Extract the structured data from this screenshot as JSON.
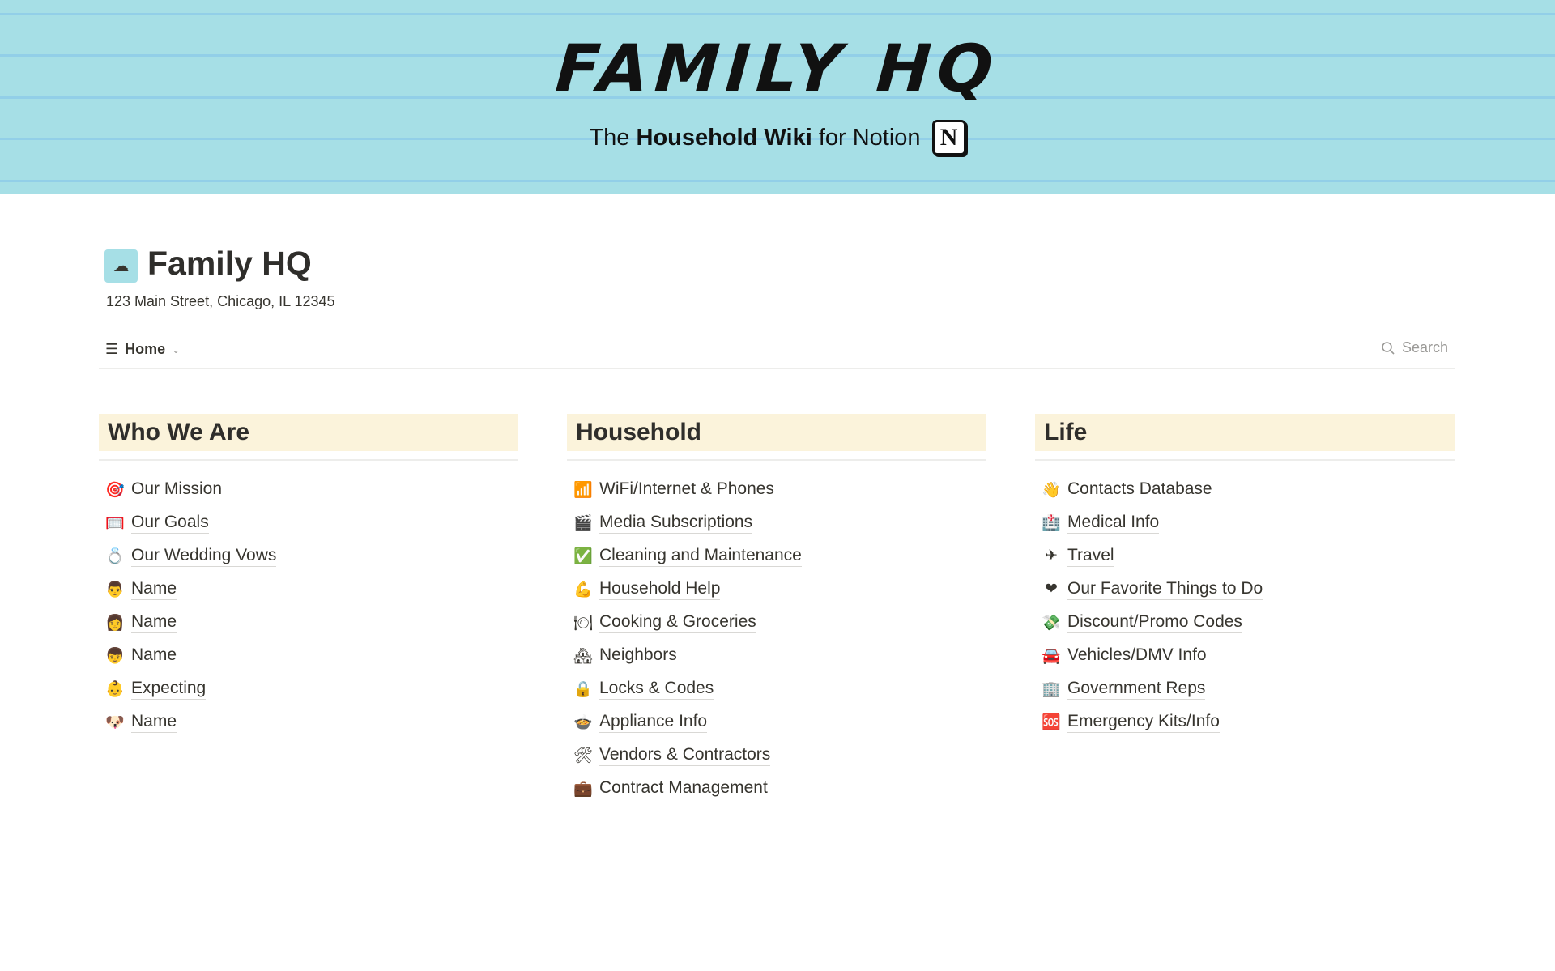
{
  "banner": {
    "title": "FAMILY HQ",
    "subtitle_pre": "The",
    "subtitle_bold": "Household Wiki",
    "subtitle_post": "for Notion",
    "logo_letter": "N",
    "background_color": "#a6dfe6",
    "line_color": "#92cfe8"
  },
  "page": {
    "icon": "cloud-icon",
    "icon_glyph": "☁",
    "title": "Family HQ",
    "address": "123 Main Street, Chicago, IL 12345"
  },
  "viewbar": {
    "view_label": "Home",
    "search_label": "Search"
  },
  "columns": [
    {
      "title": "Who We Are",
      "items": [
        {
          "icon": "🎯",
          "label": "Our Mission"
        },
        {
          "icon": "🥅",
          "label": "Our Goals"
        },
        {
          "icon": "💍",
          "label": "Our Wedding Vows"
        },
        {
          "icon": "👨",
          "label": "Name"
        },
        {
          "icon": "👩",
          "label": "Name"
        },
        {
          "icon": "👦",
          "label": "Name"
        },
        {
          "icon": "👶",
          "label": "Expecting"
        },
        {
          "icon": "🐶",
          "label": "Name"
        }
      ]
    },
    {
      "title": "Household",
      "items": [
        {
          "icon": "📶",
          "label": "WiFi/Internet & Phones"
        },
        {
          "icon": "🎬",
          "label": "Media Subscriptions"
        },
        {
          "icon": "✅",
          "label": "Cleaning and Maintenance"
        },
        {
          "icon": "💪",
          "label": "Household Help"
        },
        {
          "icon": "🍽",
          "label": "Cooking & Groceries"
        },
        {
          "icon": "🏘",
          "label": "Neighbors"
        },
        {
          "icon": "🔒",
          "label": "Locks & Codes"
        },
        {
          "icon": "🍲",
          "label": "Appliance Info"
        },
        {
          "icon": "🛠",
          "label": "Vendors & Contractors"
        },
        {
          "icon": "💼",
          "label": "Contract Management"
        }
      ]
    },
    {
      "title": "Life",
      "items": [
        {
          "icon": "👋",
          "label": "Contacts Database"
        },
        {
          "icon": "🏥",
          "label": "Medical Info"
        },
        {
          "icon": "✈",
          "label": "Travel"
        },
        {
          "icon": "❤",
          "label": "Our Favorite Things to Do"
        },
        {
          "icon": "💸",
          "label": "Discount/Promo Codes"
        },
        {
          "icon": "🚘",
          "label": "Vehicles/DMV Info"
        },
        {
          "icon": "🏢",
          "label": "Government Reps"
        },
        {
          "icon": "🆘",
          "label": "Emergency Kits/Info"
        }
      ]
    }
  ]
}
